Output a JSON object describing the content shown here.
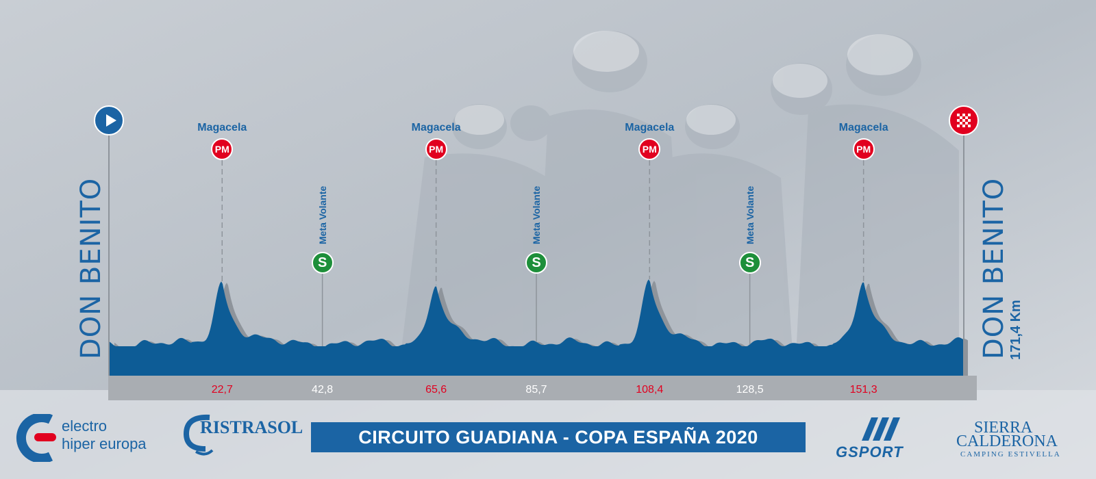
{
  "start_city": "DON BENITO",
  "finish_city": "DON BENITO",
  "total_distance": "171,4 Km",
  "title": "CIRCUITO GUADIANA - COPA ESPAÑA 2020",
  "colors": {
    "profile_fill": "#0d5c96",
    "mountain": "#e1001f",
    "sprint": "#1d8f3a",
    "brand_blue": "#1b64a4"
  },
  "markers": [
    {
      "type": "pm",
      "name": "Magacela",
      "badge": "PM",
      "km": "22,7"
    },
    {
      "type": "s",
      "name": "Meta Volante",
      "badge": "S",
      "km": "42,8"
    },
    {
      "type": "pm",
      "name": "Magacela",
      "badge": "PM",
      "km": "65,6"
    },
    {
      "type": "s",
      "name": "Meta Volante",
      "badge": "S",
      "km": "85,7"
    },
    {
      "type": "pm",
      "name": "Magacela",
      "badge": "PM",
      "km": "108,4"
    },
    {
      "type": "s",
      "name": "Meta Volante",
      "badge": "S",
      "km": "128,5"
    },
    {
      "type": "pm",
      "name": "Magacela",
      "badge": "PM",
      "km": "151,3"
    }
  ],
  "sponsors": {
    "electro_line1": "electro",
    "electro_line2": "hiper europa",
    "cristrasol": "RISTRASOL",
    "gsport": "GSPORT",
    "sierra_line1": "SIERRA",
    "sierra_line2": "CALDERONA",
    "sierra_line3": "CAMPING ESTIVELLA"
  },
  "icons": {
    "start": "play-icon",
    "finish": "checkered-flag-icon"
  }
}
